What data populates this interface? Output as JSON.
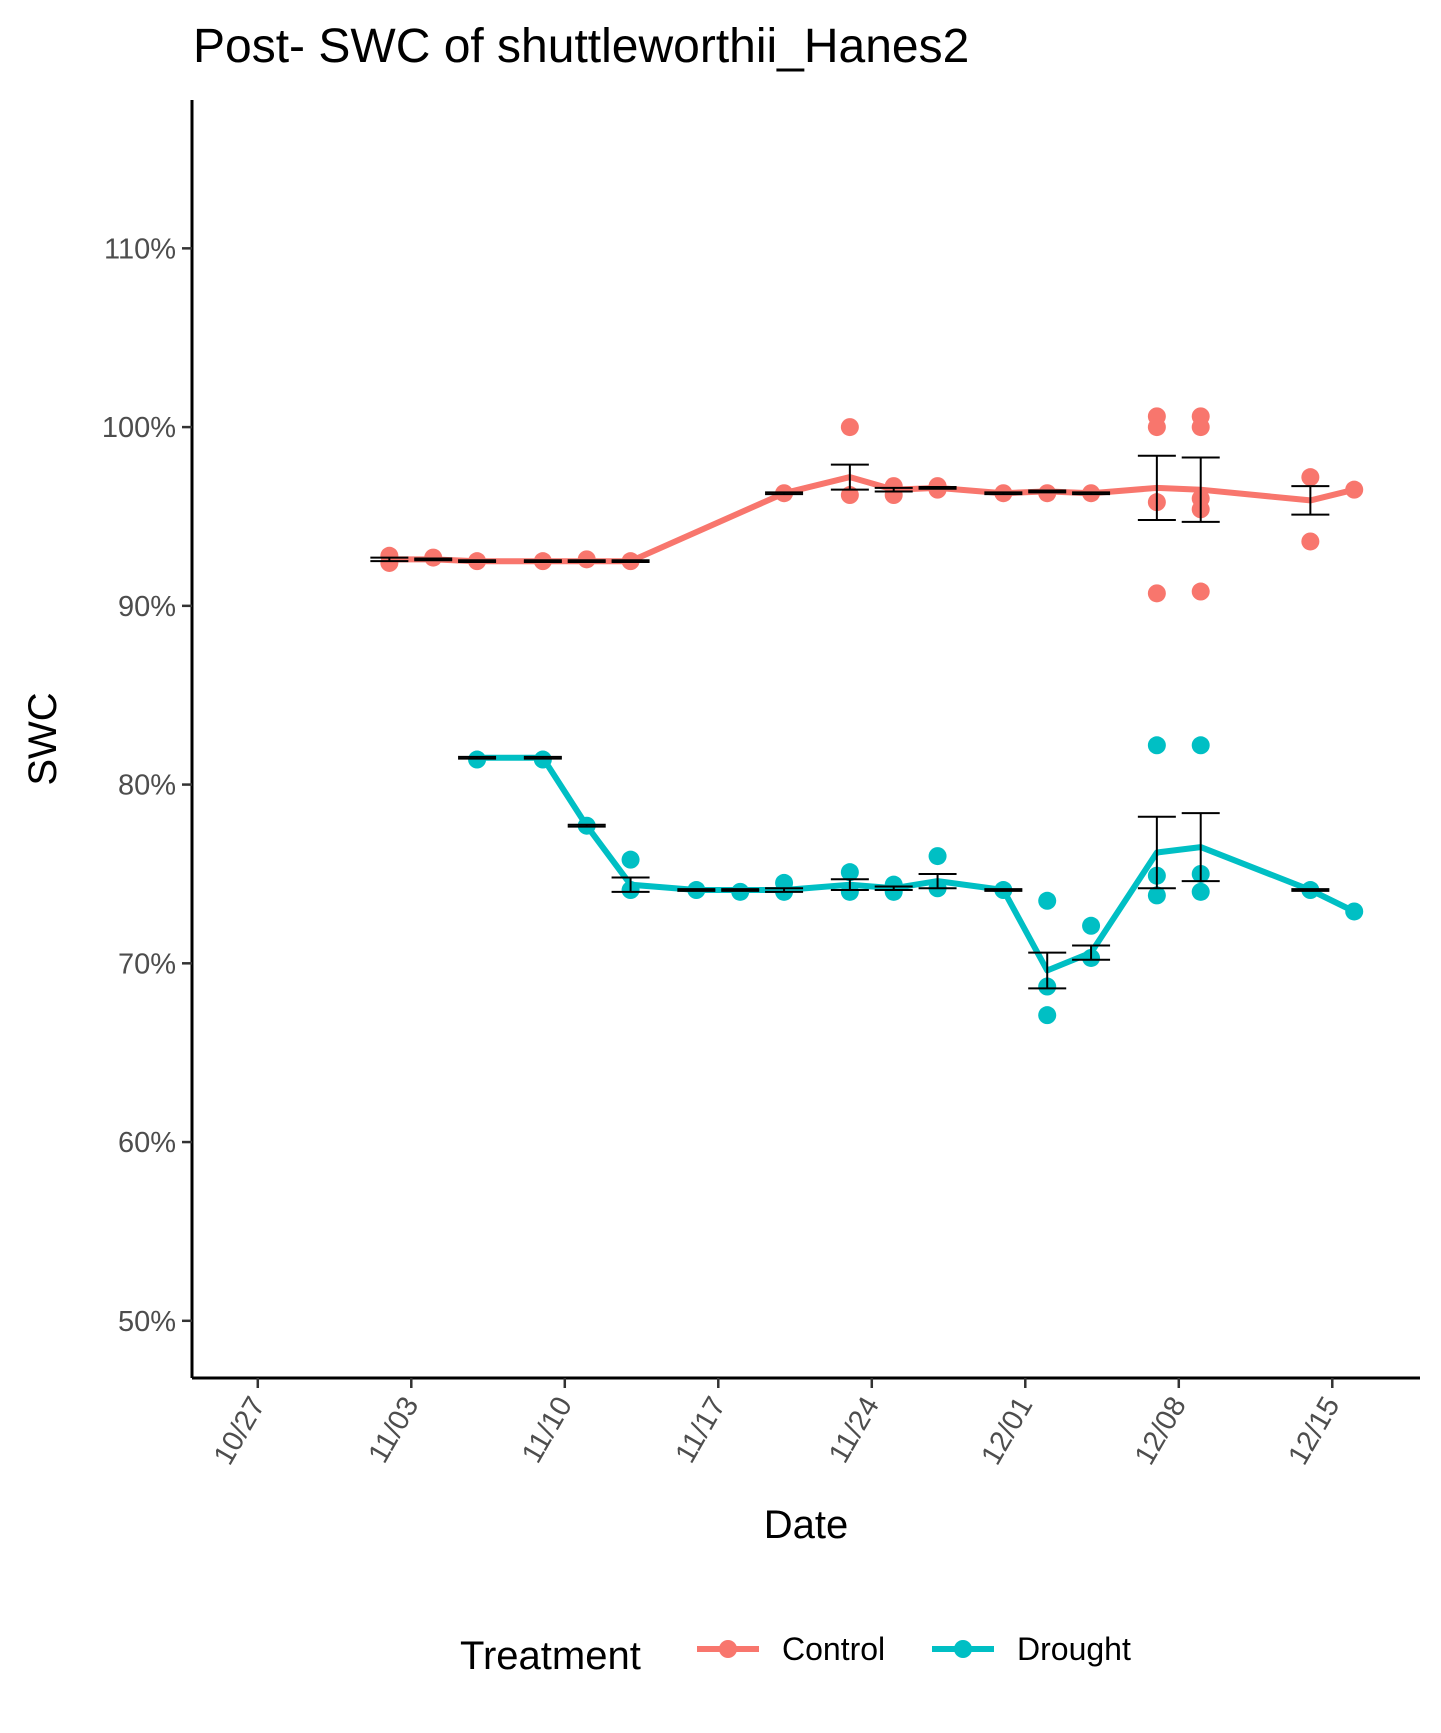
{
  "chart_data": {
    "type": "line",
    "title": "Post- SWC of shuttleworthii_Hanes2",
    "xlabel": "Date",
    "ylabel": "SWC",
    "x_axis_type": "date",
    "x_ticks": [
      "10/27",
      "11/03",
      "11/10",
      "11/17",
      "11/24",
      "12/01",
      "12/08",
      "12/15"
    ],
    "x_tick_dates": [
      "2023-10-27",
      "2023-11-03",
      "2023-11-10",
      "2023-11-17",
      "2023-11-24",
      "2023-12-01",
      "2023-12-08",
      "2023-12-15"
    ],
    "xlim": [
      "2023-10-24",
      "2023-12-19"
    ],
    "y_ticks": [
      50,
      60,
      70,
      80,
      90,
      100,
      110
    ],
    "y_tick_labels": [
      "50%",
      "60%",
      "70%",
      "80%",
      "90%",
      "100%",
      "110%"
    ],
    "ylim": [
      46.8,
      118.3
    ],
    "y_unit": "%",
    "grid": false,
    "legend": {
      "title": "Treatment",
      "position": "bottom"
    },
    "series": [
      {
        "name": "Control",
        "color": "#F8766D",
        "mean": [
          {
            "date": "2023-11-02",
            "y": 92.6,
            "se": 0.1
          },
          {
            "date": "2023-11-04",
            "y": 92.6,
            "se": 0.05
          },
          {
            "date": "2023-11-06",
            "y": 92.5,
            "se": 0.05
          },
          {
            "date": "2023-11-09",
            "y": 92.5,
            "se": 0.05
          },
          {
            "date": "2023-11-11",
            "y": 92.5,
            "se": 0.05
          },
          {
            "date": "2023-11-13",
            "y": 92.5,
            "se": 0.05
          },
          {
            "date": "2023-11-20",
            "y": 96.3,
            "se": 0.05
          },
          {
            "date": "2023-11-23",
            "y": 97.2,
            "se": 0.7
          },
          {
            "date": "2023-11-25",
            "y": 96.5,
            "se": 0.1
          },
          {
            "date": "2023-11-27",
            "y": 96.6,
            "se": 0.05
          },
          {
            "date": "2023-11-30",
            "y": 96.3,
            "se": 0.05
          },
          {
            "date": "2023-12-02",
            "y": 96.4,
            "se": 0.05
          },
          {
            "date": "2023-12-04",
            "y": 96.3,
            "se": 0.05
          },
          {
            "date": "2023-12-07",
            "y": 96.6,
            "se": 1.8
          },
          {
            "date": "2023-12-09",
            "y": 96.5,
            "se": 1.8
          },
          {
            "date": "2023-12-14",
            "y": 95.9,
            "se": 0.8
          },
          {
            "date": "2023-12-16",
            "y": 96.5,
            "se": 0
          }
        ],
        "points": [
          {
            "date": "2023-11-02",
            "y": 92.8
          },
          {
            "date": "2023-11-02",
            "y": 92.4
          },
          {
            "date": "2023-11-04",
            "y": 92.7
          },
          {
            "date": "2023-11-06",
            "y": 92.5
          },
          {
            "date": "2023-11-09",
            "y": 92.5
          },
          {
            "date": "2023-11-11",
            "y": 92.6
          },
          {
            "date": "2023-11-13",
            "y": 92.5
          },
          {
            "date": "2023-11-20",
            "y": 96.3
          },
          {
            "date": "2023-11-23",
            "y": 100.0
          },
          {
            "date": "2023-11-23",
            "y": 96.2
          },
          {
            "date": "2023-11-25",
            "y": 96.7
          },
          {
            "date": "2023-11-25",
            "y": 96.2
          },
          {
            "date": "2023-11-27",
            "y": 96.7
          },
          {
            "date": "2023-11-27",
            "y": 96.5
          },
          {
            "date": "2023-11-30",
            "y": 96.3
          },
          {
            "date": "2023-12-02",
            "y": 96.3
          },
          {
            "date": "2023-12-04",
            "y": 96.3
          },
          {
            "date": "2023-12-07",
            "y": 100.6
          },
          {
            "date": "2023-12-07",
            "y": 100.0
          },
          {
            "date": "2023-12-07",
            "y": 95.8
          },
          {
            "date": "2023-12-07",
            "y": 90.7
          },
          {
            "date": "2023-12-09",
            "y": 100.6
          },
          {
            "date": "2023-12-09",
            "y": 100.0
          },
          {
            "date": "2023-12-09",
            "y": 96.0
          },
          {
            "date": "2023-12-09",
            "y": 95.4
          },
          {
            "date": "2023-12-09",
            "y": 90.8
          },
          {
            "date": "2023-12-14",
            "y": 97.2
          },
          {
            "date": "2023-12-14",
            "y": 93.6
          },
          {
            "date": "2023-12-16",
            "y": 96.5
          }
        ]
      },
      {
        "name": "Drought",
        "color": "#00BFC4",
        "mean": [
          {
            "date": "2023-11-06",
            "y": 81.5,
            "se": 0.05
          },
          {
            "date": "2023-11-09",
            "y": 81.5,
            "se": 0.05
          },
          {
            "date": "2023-11-11",
            "y": 77.7,
            "se": 0.05
          },
          {
            "date": "2023-11-13",
            "y": 74.4,
            "se": 0.4
          },
          {
            "date": "2023-11-16",
            "y": 74.1,
            "se": 0.05
          },
          {
            "date": "2023-11-18",
            "y": 74.1,
            "se": 0.05
          },
          {
            "date": "2023-11-20",
            "y": 74.1,
            "se": 0.1
          },
          {
            "date": "2023-11-23",
            "y": 74.4,
            "se": 0.3
          },
          {
            "date": "2023-11-25",
            "y": 74.2,
            "se": 0.1
          },
          {
            "date": "2023-11-27",
            "y": 74.6,
            "se": 0.4
          },
          {
            "date": "2023-11-30",
            "y": 74.1,
            "se": 0.05
          },
          {
            "date": "2023-12-02",
            "y": 69.6,
            "se": 1.0
          },
          {
            "date": "2023-12-04",
            "y": 70.6,
            "se": 0.4
          },
          {
            "date": "2023-12-07",
            "y": 76.2,
            "se": 2.0
          },
          {
            "date": "2023-12-09",
            "y": 76.5,
            "se": 1.9
          },
          {
            "date": "2023-12-14",
            "y": 74.1,
            "se": 0.05
          },
          {
            "date": "2023-12-16",
            "y": 72.9,
            "se": 0
          }
        ],
        "points": [
          {
            "date": "2023-11-06",
            "y": 81.4
          },
          {
            "date": "2023-11-09",
            "y": 81.4
          },
          {
            "date": "2023-11-11",
            "y": 77.7
          },
          {
            "date": "2023-11-13",
            "y": 75.8
          },
          {
            "date": "2023-11-13",
            "y": 74.1
          },
          {
            "date": "2023-11-16",
            "y": 74.1
          },
          {
            "date": "2023-11-18",
            "y": 74.0
          },
          {
            "date": "2023-11-20",
            "y": 74.5
          },
          {
            "date": "2023-11-20",
            "y": 74.0
          },
          {
            "date": "2023-11-23",
            "y": 75.1
          },
          {
            "date": "2023-11-23",
            "y": 74.0
          },
          {
            "date": "2023-11-25",
            "y": 74.4
          },
          {
            "date": "2023-11-25",
            "y": 74.0
          },
          {
            "date": "2023-11-27",
            "y": 76.0
          },
          {
            "date": "2023-11-27",
            "y": 74.2
          },
          {
            "date": "2023-11-30",
            "y": 74.1
          },
          {
            "date": "2023-12-02",
            "y": 73.5
          },
          {
            "date": "2023-12-02",
            "y": 68.7
          },
          {
            "date": "2023-12-02",
            "y": 67.1
          },
          {
            "date": "2023-12-04",
            "y": 72.1
          },
          {
            "date": "2023-12-04",
            "y": 70.3
          },
          {
            "date": "2023-12-07",
            "y": 82.2
          },
          {
            "date": "2023-12-07",
            "y": 74.9
          },
          {
            "date": "2023-12-07",
            "y": 73.8
          },
          {
            "date": "2023-12-09",
            "y": 82.2
          },
          {
            "date": "2023-12-09",
            "y": 75.0
          },
          {
            "date": "2023-12-09",
            "y": 74.0
          },
          {
            "date": "2023-12-14",
            "y": 74.1
          },
          {
            "date": "2023-12-16",
            "y": 72.9
          }
        ]
      }
    ]
  }
}
